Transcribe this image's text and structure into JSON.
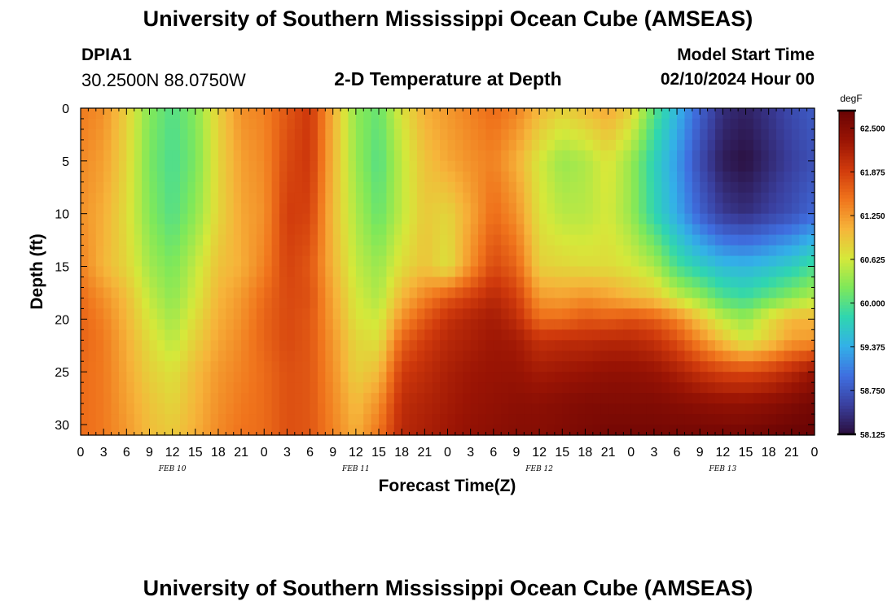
{
  "header": {
    "title": "University of Southern Mississippi Ocean Cube (AMSEAS)",
    "station": "DPIA1",
    "coords": "30.2500N  88.0750W",
    "plot_title": "2-D Temperature at Depth",
    "model_start_label": "Model Start Time",
    "model_start_value": "02/10/2024 Hour 00"
  },
  "footer": {
    "title": "University of Southern Mississippi Ocean Cube (AMSEAS)"
  },
  "chart_data": {
    "type": "heatmap",
    "title": "2-D Temperature at Depth",
    "xlabel": "Forecast Time(Z)",
    "ylabel": "Depth (ft)",
    "x_range_hours": [
      0,
      96
    ],
    "ylim": [
      0,
      31
    ],
    "x_tick_labels": [
      "0",
      "3",
      "6",
      "9",
      "12",
      "15",
      "18",
      "21",
      "0",
      "3",
      "6",
      "9",
      "12",
      "15",
      "18",
      "21",
      "0",
      "3",
      "6",
      "9",
      "12",
      "15",
      "18",
      "21",
      "0",
      "3",
      "6",
      "9",
      "12",
      "15",
      "18",
      "21",
      "0"
    ],
    "y_ticks": [
      0,
      5,
      10,
      15,
      20,
      25,
      30
    ],
    "day_labels": [
      {
        "label": "FEB 10",
        "hour": 12
      },
      {
        "label": "FEB 11",
        "hour": 36
      },
      {
        "label": "FEB 12",
        "hour": 60
      },
      {
        "label": "FEB 13",
        "hour": 84
      }
    ],
    "colorbar": {
      "unit": "degF",
      "min": 58.125,
      "max": 62.75,
      "labels": [
        "62.500",
        "61.875",
        "61.250",
        "60.625",
        "60.000",
        "59.375",
        "58.750",
        "58.125"
      ],
      "stops": [
        "#2a0d3a",
        "#3a3f9e",
        "#3f6fe0",
        "#33b0e8",
        "#2fd6b0",
        "#7ee85a",
        "#d6e83a",
        "#f6b43a",
        "#f0741c",
        "#d03a0c",
        "#9a1404",
        "#6a0404"
      ]
    },
    "temperature_degF": {
      "depths_ft": [
        0,
        5,
        10,
        15,
        18,
        20,
        22,
        25,
        28,
        31
      ],
      "hours": [
        0,
        3,
        6,
        9,
        12,
        15,
        18,
        21,
        24,
        27,
        30,
        33,
        36,
        39,
        42,
        45,
        48,
        51,
        54,
        57,
        60,
        63,
        66,
        69,
        72,
        75,
        78,
        81,
        84,
        87,
        90,
        93,
        96
      ],
      "rows": [
        [
          61.45,
          61.3,
          60.85,
          60.25,
          60.0,
          60.25,
          60.85,
          61.3,
          61.4,
          61.7,
          61.95,
          61.1,
          60.3,
          60.1,
          60.7,
          61.1,
          61.25,
          61.4,
          61.55,
          61.4,
          61.05,
          60.85,
          61.0,
          61.15,
          60.85,
          60.05,
          59.45,
          58.85,
          58.4,
          58.3,
          58.45,
          58.65,
          58.8
        ],
        [
          61.35,
          61.2,
          60.8,
          60.2,
          59.95,
          60.2,
          60.8,
          61.2,
          61.35,
          61.8,
          61.95,
          61.05,
          60.35,
          60.0,
          60.55,
          60.95,
          61.15,
          61.3,
          61.4,
          61.1,
          60.65,
          60.35,
          60.45,
          60.7,
          60.35,
          59.75,
          59.25,
          58.65,
          58.25,
          58.15,
          58.35,
          58.55,
          58.7
        ],
        [
          61.3,
          61.1,
          60.75,
          60.25,
          60.0,
          60.3,
          60.8,
          61.15,
          61.3,
          61.9,
          61.85,
          61.0,
          60.45,
          60.1,
          60.55,
          60.9,
          60.8,
          61.15,
          61.55,
          61.3,
          60.7,
          60.5,
          60.5,
          60.65,
          60.35,
          59.8,
          59.35,
          58.85,
          58.5,
          58.4,
          58.55,
          58.7,
          58.9
        ],
        [
          61.4,
          61.05,
          60.8,
          60.4,
          60.2,
          60.55,
          60.95,
          61.1,
          61.4,
          61.85,
          61.7,
          61.05,
          60.55,
          60.35,
          60.75,
          60.95,
          60.7,
          61.3,
          61.8,
          61.6,
          60.85,
          60.8,
          60.75,
          60.75,
          60.65,
          60.45,
          59.95,
          59.7,
          59.5,
          59.45,
          59.55,
          59.7,
          59.95
        ],
        [
          61.55,
          61.3,
          61.0,
          60.55,
          60.3,
          60.65,
          61.05,
          61.25,
          61.55,
          61.8,
          61.75,
          61.15,
          60.65,
          60.45,
          61.05,
          61.4,
          61.7,
          61.9,
          62.1,
          61.9,
          61.25,
          61.2,
          61.3,
          61.2,
          61.05,
          60.95,
          60.6,
          60.35,
          60.0,
          59.9,
          60.1,
          60.3,
          60.5
        ],
        [
          61.6,
          61.4,
          61.05,
          60.65,
          60.4,
          60.75,
          61.1,
          61.3,
          61.6,
          61.8,
          61.7,
          61.2,
          60.7,
          60.6,
          61.3,
          61.7,
          62.0,
          62.15,
          62.25,
          62.05,
          61.55,
          61.55,
          61.7,
          61.65,
          61.75,
          61.65,
          61.4,
          60.95,
          60.55,
          60.35,
          60.75,
          61.05,
          61.05
        ],
        [
          61.6,
          61.45,
          61.1,
          60.75,
          60.5,
          60.85,
          61.15,
          61.35,
          61.6,
          61.8,
          61.7,
          61.25,
          60.8,
          60.7,
          61.6,
          61.9,
          62.1,
          62.2,
          62.3,
          62.25,
          62.0,
          62.05,
          62.05,
          62.1,
          62.1,
          62.0,
          61.75,
          61.35,
          60.95,
          60.6,
          60.85,
          61.2,
          61.25
        ],
        [
          61.55,
          61.45,
          61.15,
          60.85,
          60.7,
          61.0,
          61.25,
          61.4,
          61.55,
          61.75,
          61.7,
          61.3,
          60.85,
          61.0,
          61.9,
          62.05,
          62.2,
          62.3,
          62.35,
          62.35,
          62.25,
          62.3,
          62.35,
          62.4,
          62.4,
          62.35,
          62.2,
          62.0,
          61.85,
          61.8,
          61.9,
          62.1,
          62.35
        ],
        [
          61.55,
          61.45,
          61.2,
          60.95,
          60.8,
          61.05,
          61.3,
          61.45,
          61.55,
          61.75,
          61.7,
          61.35,
          61.0,
          61.3,
          62.05,
          62.15,
          62.25,
          62.35,
          62.4,
          62.45,
          62.45,
          62.5,
          62.55,
          62.55,
          62.55,
          62.55,
          62.5,
          62.45,
          62.4,
          62.4,
          62.45,
          62.55,
          62.65
        ],
        [
          61.55,
          61.45,
          61.25,
          61.0,
          60.9,
          61.1,
          61.35,
          61.5,
          61.55,
          61.75,
          61.7,
          61.4,
          61.1,
          61.5,
          62.1,
          62.2,
          62.3,
          62.4,
          62.45,
          62.5,
          62.5,
          62.55,
          62.6,
          62.65,
          62.65,
          62.65,
          62.65,
          62.65,
          62.65,
          62.65,
          62.7,
          62.75,
          62.75
        ]
      ]
    }
  }
}
